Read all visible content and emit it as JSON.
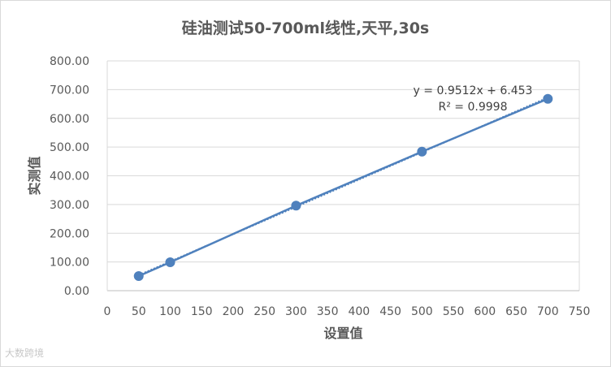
{
  "chart_data": {
    "type": "scatter",
    "title": "硅油测试50-700ml线性,天平,30s",
    "xlabel": "设置值",
    "ylabel": "实测值",
    "xlim": [
      0,
      750
    ],
    "ylim": [
      0,
      800
    ],
    "x_ticks": [
      "0",
      "50",
      "100",
      "150",
      "200",
      "250",
      "300",
      "350",
      "400",
      "450",
      "500",
      "550",
      "600",
      "650",
      "700",
      "750"
    ],
    "y_ticks": [
      "0.00",
      "100.00",
      "200.00",
      "300.00",
      "400.00",
      "500.00",
      "600.00",
      "700.00",
      "800.00"
    ],
    "grid": true,
    "series": [
      {
        "x": [
          50,
          100,
          300,
          500,
          700
        ],
        "y": [
          51,
          99,
          296,
          484,
          668
        ],
        "color": "#4f81bd"
      }
    ],
    "trendline": {
      "type": "linear",
      "slope": 0.9512,
      "intercept": 6.453,
      "equation": "y = 0.9512x + 6.453",
      "r_squared": "R² = 0.9998",
      "style": "dotted",
      "color": "#4f81bd"
    }
  },
  "watermark": "大数跨境"
}
